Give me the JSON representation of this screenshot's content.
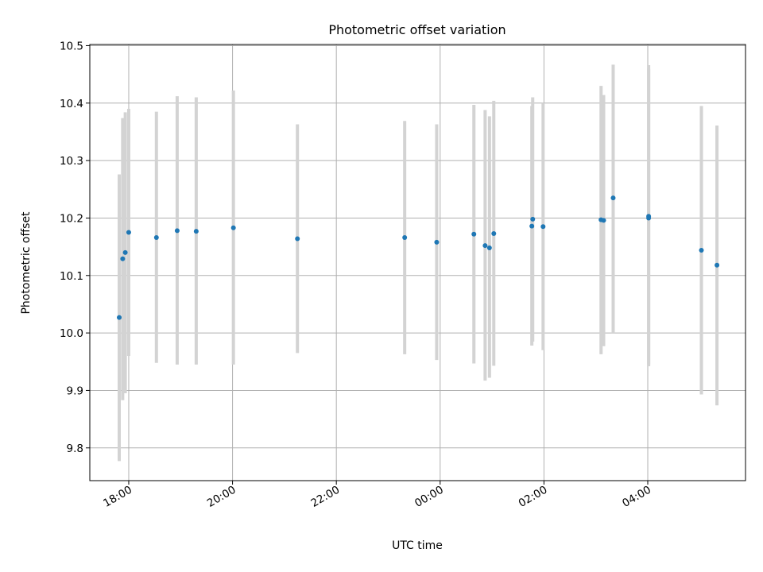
{
  "chart_data": {
    "type": "scatter",
    "title": "Photometric offset variation",
    "xlabel": "UTC time",
    "ylabel": "Photometric offset",
    "x_tick_labels": [
      "18:00",
      "20:00",
      "22:00",
      "00:00",
      "02:00",
      "04:00"
    ],
    "y_tick_labels": [
      "9.8",
      "9.9",
      "10.0",
      "10.1",
      "10.2",
      "10.3",
      "10.4",
      "10.5"
    ],
    "xlim": [
      "17:15",
      "05:53"
    ],
    "ylim": [
      9.743,
      10.502
    ],
    "grid": true,
    "colors": {
      "point": "#1f77b4",
      "errorbar": "#d3d3d3",
      "grid": "#b0b0b0"
    },
    "points": [
      {
        "x": "17:49",
        "y": 10.027,
        "ylow": 9.777,
        "yhigh": 10.276
      },
      {
        "x": "17:53",
        "y": 10.129,
        "ylow": 9.883,
        "yhigh": 10.374
      },
      {
        "x": "17:56",
        "y": 10.14,
        "ylow": 9.895,
        "yhigh": 10.384
      },
      {
        "x": "18:00",
        "y": 10.175,
        "ylow": 9.96,
        "yhigh": 10.39
      },
      {
        "x": "18:32",
        "y": 10.166,
        "ylow": 9.948,
        "yhigh": 10.385
      },
      {
        "x": "18:56",
        "y": 10.178,
        "ylow": 9.945,
        "yhigh": 10.412
      },
      {
        "x": "19:18",
        "y": 10.177,
        "ylow": 9.945,
        "yhigh": 10.41
      },
      {
        "x": "20:01",
        "y": 10.183,
        "ylow": 9.945,
        "yhigh": 10.422
      },
      {
        "x": "21:15",
        "y": 10.164,
        "ylow": 9.965,
        "yhigh": 10.363
      },
      {
        "x": "23:19",
        "y": 10.166,
        "ylow": 9.963,
        "yhigh": 10.369
      },
      {
        "x": "23:56",
        "y": 10.158,
        "ylow": 9.953,
        "yhigh": 10.363
      },
      {
        "x": "00:39",
        "y": 10.172,
        "ylow": 9.947,
        "yhigh": 10.397
      },
      {
        "x": "00:52",
        "y": 10.152,
        "ylow": 9.917,
        "yhigh": 10.388
      },
      {
        "x": "00:57",
        "y": 10.148,
        "ylow": 9.922,
        "yhigh": 10.377
      },
      {
        "x": "01:02",
        "y": 10.173,
        "ylow": 9.943,
        "yhigh": 10.404
      },
      {
        "x": "01:46",
        "y": 10.186,
        "ylow": 9.978,
        "yhigh": 10.395
      },
      {
        "x": "01:47",
        "y": 10.198,
        "ylow": 9.985,
        "yhigh": 10.41
      },
      {
        "x": "01:59",
        "y": 10.185,
        "ylow": 9.97,
        "yhigh": 10.4
      },
      {
        "x": "03:06",
        "y": 10.197,
        "ylow": 9.963,
        "yhigh": 10.43
      },
      {
        "x": "03:09",
        "y": 10.196,
        "ylow": 9.977,
        "yhigh": 10.414
      },
      {
        "x": "03:20",
        "y": 10.235,
        "ylow": 10.0,
        "yhigh": 10.467
      },
      {
        "x": "04:01",
        "y": 10.2,
        "ylow": 9.942,
        "yhigh": 10.466
      },
      {
        "x": "04:01",
        "y": 10.203,
        "ylow": 9.945,
        "yhigh": 10.46
      },
      {
        "x": "05:02",
        "y": 10.144,
        "ylow": 9.893,
        "yhigh": 10.395
      },
      {
        "x": "05:20",
        "y": 10.118,
        "ylow": 9.874,
        "yhigh": 10.361
      }
    ]
  }
}
